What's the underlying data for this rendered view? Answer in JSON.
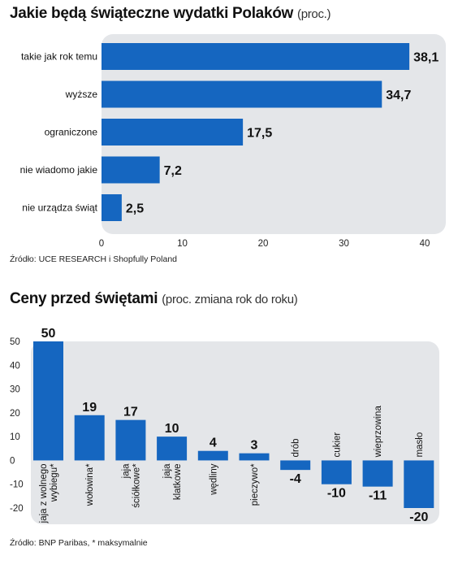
{
  "chart_data": [
    {
      "type": "bar",
      "orientation": "horizontal",
      "title": "Jakie będą świąteczne wydatki Polaków",
      "subtitle": "(proc.)",
      "categories": [
        "takie jak rok temu",
        "wyższe",
        "ograniczone",
        "nie wiadomo jakie",
        "nie urządza świąt"
      ],
      "values": [
        38.1,
        34.7,
        17.5,
        7.2,
        2.5
      ],
      "value_labels": [
        "38,1",
        "34,7",
        "17,5",
        "7,2",
        "2,5"
      ],
      "xlim": [
        0,
        40
      ],
      "xticks": [
        "0",
        "10",
        "20",
        "30",
        "40"
      ],
      "source": "Źródło: UCE RESEARCH i Shopfully Poland",
      "bar_color": "#1566c0",
      "background_color": "#e4e6e9"
    },
    {
      "type": "bar",
      "orientation": "vertical",
      "title": "Ceny przed świętami",
      "subtitle": "(proc. zmiana rok do roku)",
      "categories": [
        [
          "jaja z wolnego",
          "wybiegu*"
        ],
        [
          "wołowina*"
        ],
        [
          "jaja",
          "ściółkowe*"
        ],
        [
          "jaja",
          "klatkowe"
        ],
        [
          "wędliny"
        ],
        [
          "pieczywo*"
        ],
        [
          "drób"
        ],
        [
          "cukier"
        ],
        [
          "wieprzowina"
        ],
        [
          "masło"
        ]
      ],
      "values": [
        50,
        19,
        17,
        10,
        4,
        3,
        -4,
        -10,
        -11,
        -20
      ],
      "value_labels": [
        "50",
        "19",
        "17",
        "10",
        "4",
        "3",
        "-4",
        "-10",
        "-11",
        "-20"
      ],
      "ylim": [
        -20,
        50
      ],
      "yticks": [
        "50",
        "40",
        "30",
        "20",
        "10",
        "0",
        "-10",
        "-20"
      ],
      "source": "Źródło: BNP Paribas, * maksymalnie",
      "bar_color": "#1566c0",
      "background_color": "#e4e6e9"
    }
  ]
}
